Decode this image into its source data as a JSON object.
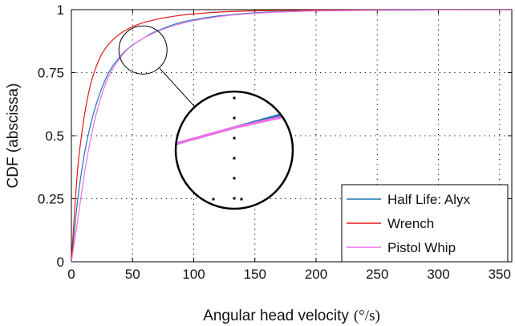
{
  "chart_data": {
    "type": "line",
    "xlabel": "Angular head velocity",
    "xunit": "(°/s)",
    "ylabel": "CDF (abscissa)",
    "xlim": [
      0,
      360
    ],
    "ylim": [
      0,
      1
    ],
    "xticks": [
      0,
      50,
      100,
      150,
      200,
      250,
      300,
      350
    ],
    "yticks": [
      0,
      0.25,
      0.5,
      0.75,
      1
    ],
    "ytick_labels": [
      "0",
      "0.25",
      "0.5",
      "0.75",
      "1"
    ],
    "grid": true,
    "legend_position": "bottom-right",
    "x": [
      0,
      5,
      10,
      15,
      20,
      25,
      30,
      35,
      40,
      45,
      50,
      55,
      60,
      65,
      70,
      80,
      90,
      100,
      120,
      140,
      160,
      180,
      200,
      240,
      280,
      320,
      360
    ],
    "series": [
      {
        "name": "Half Life: Alyx",
        "color": "#1f77b4",
        "values": [
          0,
          0.24,
          0.41,
          0.53,
          0.62,
          0.69,
          0.745,
          0.785,
          0.815,
          0.84,
          0.86,
          0.875,
          0.89,
          0.905,
          0.915,
          0.935,
          0.95,
          0.96,
          0.975,
          0.984,
          0.99,
          0.993,
          0.995,
          0.997,
          0.998,
          0.999,
          0.999
        ]
      },
      {
        "name": "Wrench",
        "color": "#e41a1c",
        "values": [
          0,
          0.36,
          0.56,
          0.69,
          0.77,
          0.825,
          0.86,
          0.885,
          0.905,
          0.92,
          0.932,
          0.942,
          0.95,
          0.956,
          0.962,
          0.971,
          0.978,
          0.983,
          0.99,
          0.994,
          0.996,
          0.997,
          0.998,
          0.999,
          0.999,
          1.0,
          1.0
        ]
      },
      {
        "name": "Pistol Whip",
        "color": "#ee6ee8",
        "values": [
          0,
          0.16,
          0.33,
          0.47,
          0.58,
          0.665,
          0.73,
          0.775,
          0.81,
          0.838,
          0.858,
          0.875,
          0.89,
          0.902,
          0.913,
          0.931,
          0.945,
          0.956,
          0.972,
          0.982,
          0.988,
          0.992,
          0.995,
          0.997,
          0.998,
          0.999,
          0.999
        ]
      }
    ],
    "inset": {
      "xlim": [
        54,
        66
      ],
      "ylim": [
        0.8,
        0.93
      ],
      "source_center": [
        58.5,
        0.84
      ]
    }
  }
}
